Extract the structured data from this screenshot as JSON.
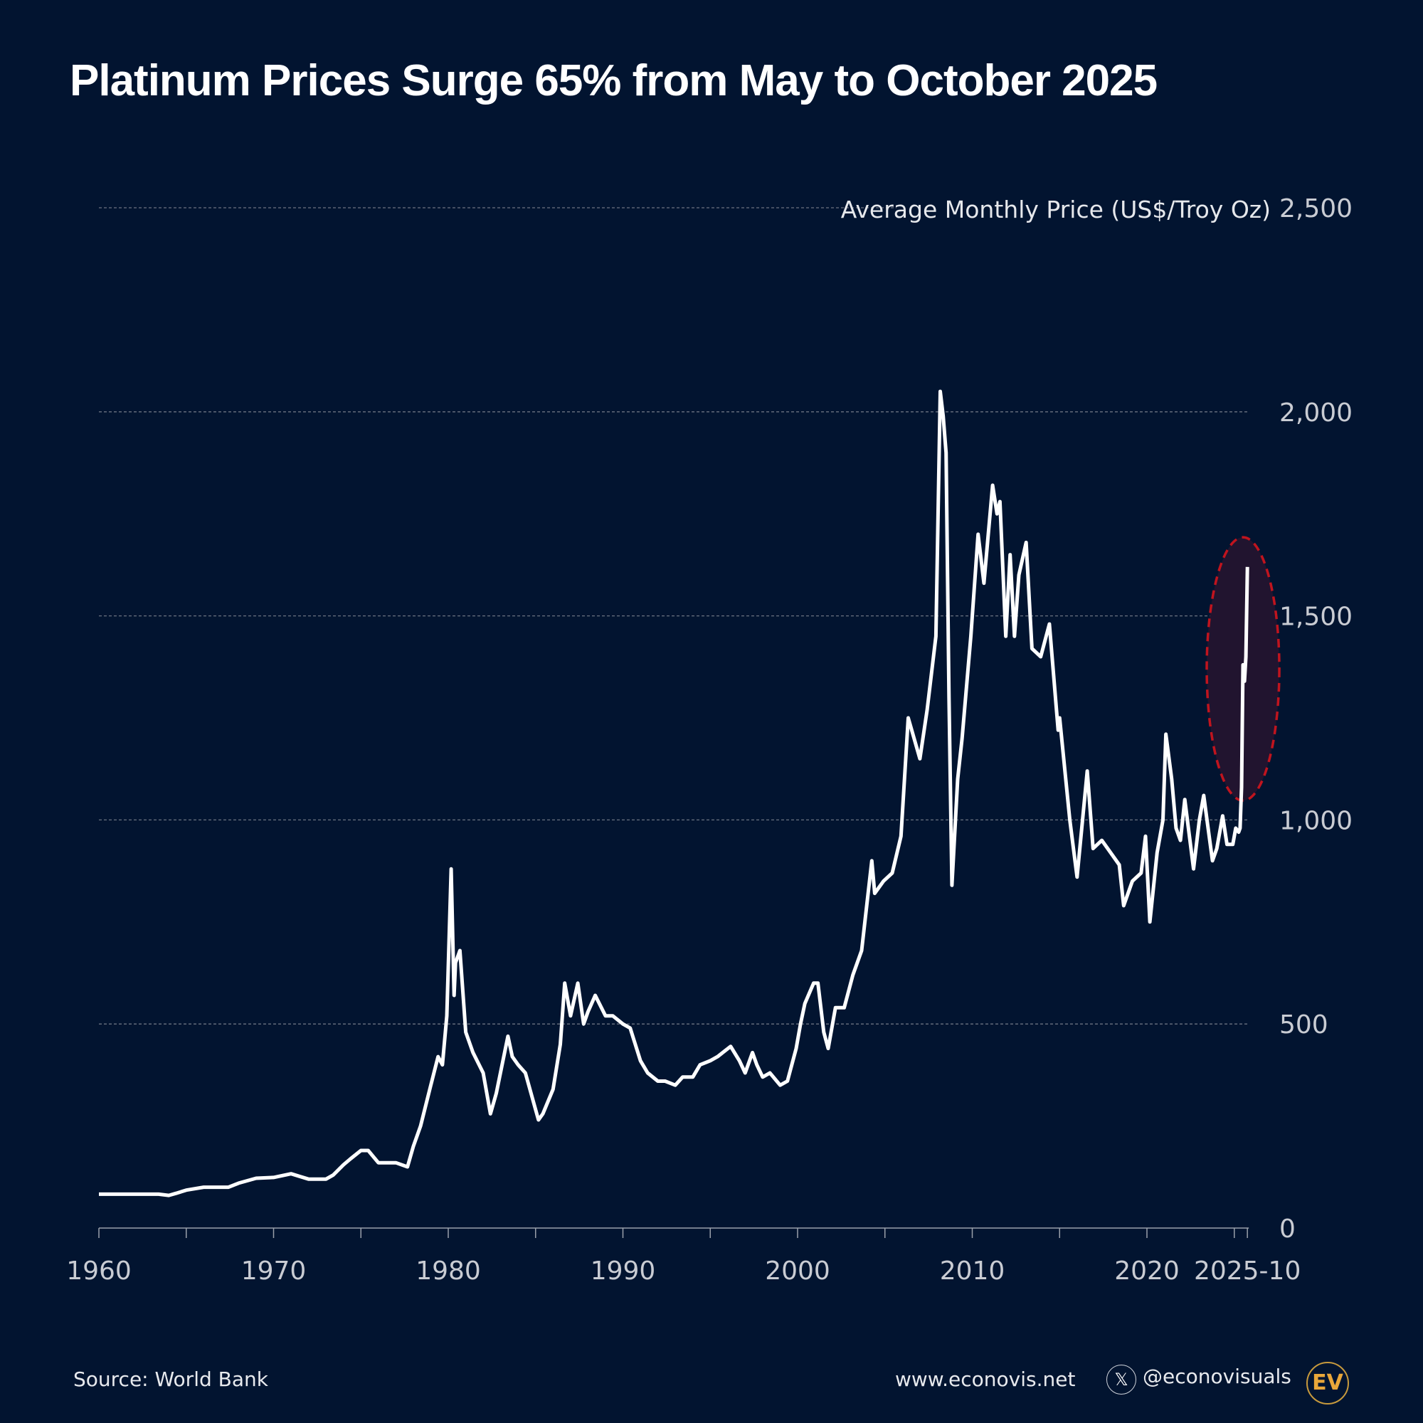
{
  "title": "Platinum Prices Surge 65% from May to October 2025",
  "footer": {
    "source": "Source: World Bank",
    "website": "www.econovis.net",
    "handle": "@econovisuals",
    "logo_text": "EV",
    "x_icon": "x-logo-icon"
  },
  "colors": {
    "background": "#021430",
    "line": "#ffffff",
    "highlight_stroke": "#c0141e",
    "highlight_fill": "#21142f",
    "grid": "#6b7280"
  },
  "chart_data": {
    "type": "line",
    "title": "Platinum Prices Surge 65% from May to October 2025",
    "ylabel": "Average Monthly Price (US$/Troy Oz)",
    "xlabel": "",
    "ylim": [
      0,
      2500
    ],
    "xlim": [
      "1960-01",
      "2025-10"
    ],
    "yticks": [
      "0",
      "500",
      "1,000",
      "1,500",
      "2,000",
      "2,500"
    ],
    "ytick_values": [
      0,
      500,
      1000,
      1500,
      2000,
      2500
    ],
    "xticks": [
      "1960",
      "1970",
      "1980",
      "1990",
      "2000",
      "2010",
      "2020",
      "2025-10"
    ],
    "grid": true,
    "highlight": {
      "from": "2025-05",
      "to": "2025-10",
      "change": "65%"
    },
    "x": [
      "1960-01",
      "1963-06",
      "1964-01",
      "1964-06",
      "1965-01",
      "1966-01",
      "1967-06",
      "1968-01",
      "1969-01",
      "1970-01",
      "1971-01",
      "1972-01",
      "1973-01",
      "1973-06",
      "1974-01",
      "1974-06",
      "1975-01",
      "1975-06",
      "1976-01",
      "1977-01",
      "1977-09",
      "1978-01",
      "1978-06",
      "1979-01",
      "1979-06",
      "1979-09",
      "1979-12",
      "1980-03",
      "1980-05",
      "1980-06",
      "1980-09",
      "1981-01",
      "1981-06",
      "1982-01",
      "1982-06",
      "1982-10",
      "1983-06",
      "1983-09",
      "1984-01",
      "1984-06",
      "1985-01",
      "1985-03",
      "1985-06",
      "1986-01",
      "1986-06",
      "1986-09",
      "1987-01",
      "1987-06",
      "1987-10",
      "1988-01",
      "1988-06",
      "1989-01",
      "1989-06",
      "1990-01",
      "1990-06",
      "1991-01",
      "1991-06",
      "1992-01",
      "1992-06",
      "1993-01",
      "1993-06",
      "1994-01",
      "1994-06",
      "1995-01",
      "1995-06",
      "1996-03",
      "1996-09",
      "1997-01",
      "1997-06",
      "1997-09",
      "1998-01",
      "1998-06",
      "1999-01",
      "1999-06",
      "1999-12",
      "2000-03",
      "2000-06",
      "2000-12",
      "2001-03",
      "2001-07",
      "2001-10",
      "2002-03",
      "2002-09",
      "2003-03",
      "2003-09",
      "2004-04",
      "2004-06",
      "2004-12",
      "2005-06",
      "2005-12",
      "2006-05",
      "2006-09",
      "2007-01",
      "2007-06",
      "2007-12",
      "2008-03",
      "2008-05",
      "2008-07",
      "2008-09",
      "2008-11",
      "2009-03",
      "2009-06",
      "2009-12",
      "2010-05",
      "2010-09",
      "2011-03",
      "2011-06",
      "2011-08",
      "2011-12",
      "2012-03",
      "2012-06",
      "2012-09",
      "2013-02",
      "2013-06",
      "2013-12",
      "2014-06",
      "2014-12",
      "2015-01",
      "2015-08",
      "2016-01",
      "2016-08",
      "2016-12",
      "2017-06",
      "2017-12",
      "2018-06",
      "2018-09",
      "2019-03",
      "2019-09",
      "2019-12",
      "2020-03",
      "2020-08",
      "2020-12",
      "2021-02",
      "2021-06",
      "2021-09",
      "2021-12",
      "2022-03",
      "2022-09",
      "2023-01",
      "2023-04",
      "2023-10",
      "2024-01",
      "2024-05",
      "2024-08",
      "2024-12",
      "2025-02",
      "2025-04",
      "2025-05",
      "2025-06",
      "2025-07",
      "2025-08",
      "2025-09",
      "2025-10"
    ],
    "values": [
      83,
      83,
      80,
      85,
      93,
      100,
      100,
      110,
      122,
      124,
      133,
      120,
      120,
      130,
      155,
      170,
      190,
      190,
      160,
      160,
      150,
      200,
      250,
      350,
      420,
      400,
      520,
      880,
      570,
      650,
      680,
      480,
      430,
      380,
      280,
      330,
      470,
      420,
      400,
      380,
      290,
      265,
      280,
      340,
      450,
      600,
      520,
      600,
      500,
      530,
      570,
      520,
      520,
      500,
      490,
      410,
      380,
      360,
      360,
      350,
      370,
      370,
      400,
      410,
      420,
      445,
      410,
      380,
      430,
      400,
      370,
      380,
      350,
      360,
      440,
      500,
      550,
      600,
      600,
      480,
      440,
      540,
      540,
      620,
      680,
      900,
      820,
      850,
      870,
      960,
      1250,
      1200,
      1150,
      1270,
      1450,
      2050,
      1990,
      1900,
      1300,
      840,
      1100,
      1200,
      1450,
      1700,
      1580,
      1820,
      1750,
      1780,
      1450,
      1650,
      1450,
      1600,
      1680,
      1420,
      1400,
      1480,
      1220,
      1250,
      1000,
      860,
      1120,
      930,
      950,
      920,
      890,
      790,
      850,
      870,
      960,
      750,
      920,
      1000,
      1210,
      1100,
      980,
      950,
      1050,
      880,
      1000,
      1060,
      900,
      930,
      1010,
      940,
      940,
      980,
      970,
      980,
      1080,
      1380,
      1340,
      1400,
      1620
    ]
  }
}
